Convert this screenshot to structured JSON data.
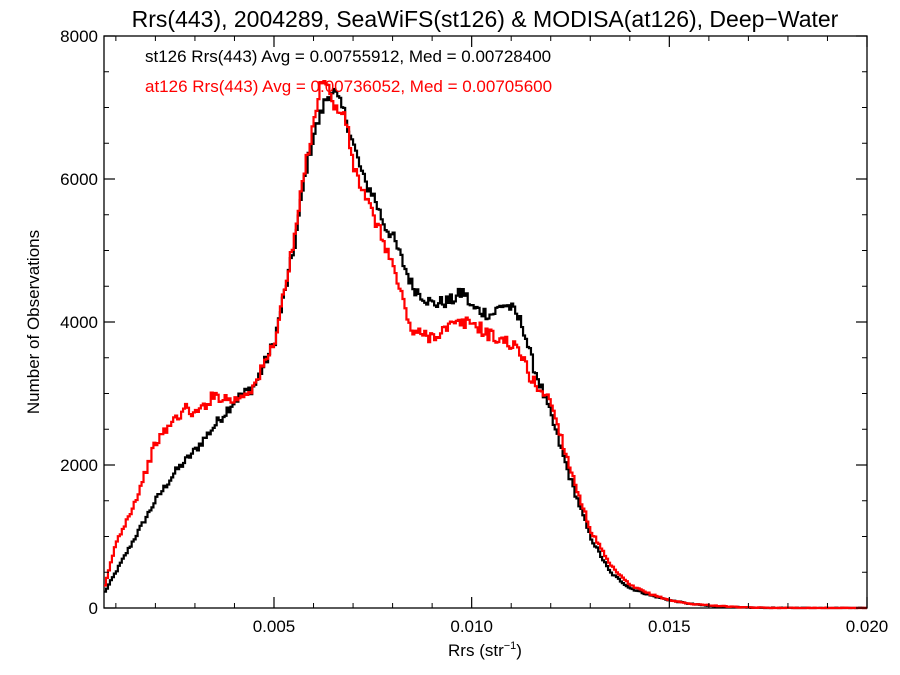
{
  "chart_data": {
    "type": "line",
    "title": "Rrs(443), 2004289, SeaWiFS(st126) & MODISA(at126), Deep−Water",
    "xlabel": "Rrs (str",
    "xlabel_sup": "−1",
    "xlabel_end": ")",
    "ylabel": "Number of Observations",
    "xlim": [
      0.0007,
      0.02
    ],
    "ylim": [
      0,
      8000
    ],
    "xticks": [
      0.005,
      0.01,
      0.015,
      0.02
    ],
    "xtick_labels": [
      "0.005",
      "0.010",
      "0.015",
      "0.020"
    ],
    "yticks": [
      0,
      2000,
      4000,
      6000,
      8000
    ],
    "ytick_labels": [
      "0",
      "2000",
      "4000",
      "6000",
      "8000"
    ],
    "grid": false,
    "annotations": [
      {
        "text": "st126 Rrs(443) Avg = 0.00755912, Med = 0.00728400",
        "color": "#000000"
      },
      {
        "text": "at126 Rrs(443) Avg = 0.00736052, Med = 0.00705600",
        "color": "#ff0000"
      }
    ],
    "series": [
      {
        "color": "#000000",
        "x": [
          0.0007,
          0.001,
          0.0015,
          0.002,
          0.0025,
          0.003,
          0.0035,
          0.004,
          0.0045,
          0.005,
          0.0055,
          0.0058,
          0.006,
          0.0063,
          0.0065,
          0.0068,
          0.007,
          0.0073,
          0.0075,
          0.0078,
          0.008,
          0.0085,
          0.009,
          0.0095,
          0.0098,
          0.01,
          0.0105,
          0.0108,
          0.011,
          0.0113,
          0.0115,
          0.012,
          0.0125,
          0.013,
          0.0135,
          0.014,
          0.0145,
          0.015,
          0.0155,
          0.016,
          0.0165,
          0.017,
          0.0175,
          0.018,
          0.019,
          0.02
        ],
        "y": [
          200,
          500,
          1000,
          1500,
          1900,
          2200,
          2550,
          2900,
          3100,
          3700,
          5000,
          6100,
          6600,
          7100,
          7250,
          6900,
          6500,
          5950,
          5800,
          5350,
          5200,
          4500,
          4250,
          4300,
          4430,
          4200,
          4100,
          4250,
          4200,
          3950,
          3500,
          2700,
          1800,
          1000,
          500,
          280,
          180,
          110,
          60,
          30,
          15,
          5,
          2,
          1,
          0,
          0
        ]
      },
      {
        "color": "#ff0000",
        "x": [
          0.0007,
          0.001,
          0.0015,
          0.002,
          0.0025,
          0.0028,
          0.003,
          0.0035,
          0.004,
          0.0045,
          0.005,
          0.0055,
          0.0058,
          0.006,
          0.0062,
          0.0063,
          0.0065,
          0.0068,
          0.007,
          0.0073,
          0.0075,
          0.0078,
          0.008,
          0.0085,
          0.009,
          0.0095,
          0.01,
          0.0105,
          0.011,
          0.0113,
          0.0115,
          0.012,
          0.0125,
          0.013,
          0.0135,
          0.014,
          0.0145,
          0.015,
          0.0155,
          0.016,
          0.0165,
          0.017,
          0.0175,
          0.018,
          0.019,
          0.02
        ],
        "y": [
          250,
          900,
          1500,
          2300,
          2650,
          2800,
          2700,
          2980,
          2900,
          3100,
          3700,
          5100,
          6200,
          6800,
          7350,
          7450,
          7000,
          6900,
          6200,
          5750,
          5500,
          5100,
          4800,
          3850,
          3800,
          3950,
          4000,
          3800,
          3700,
          3500,
          3200,
          2900,
          1950,
          1100,
          600,
          320,
          200,
          110,
          60,
          40,
          20,
          6,
          3,
          1,
          0,
          0
        ]
      }
    ]
  }
}
